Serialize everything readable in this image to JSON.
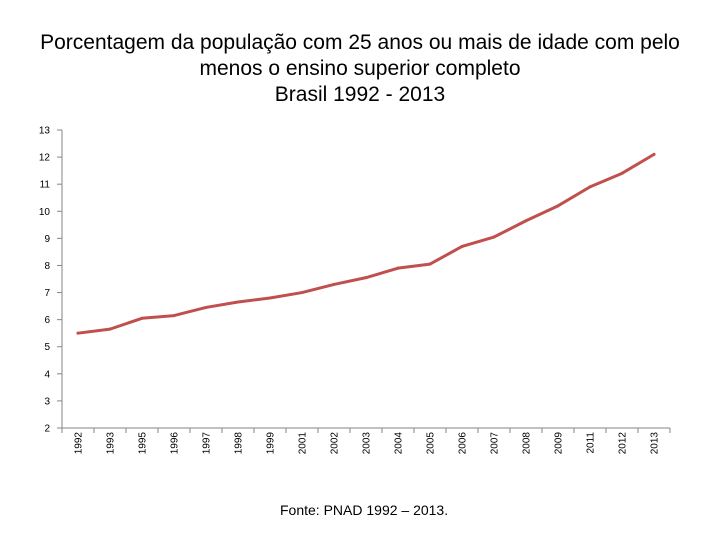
{
  "title_lines": [
    "Porcentagem da população com 25 anos ou mais de idade com pelo",
    "menos o ensino superior completo",
    "Brasil   1992 - 2013"
  ],
  "source": "Fonte: PNAD 1992 – 2013.",
  "colors": {
    "series": "#c0504d",
    "axis": "#868686"
  },
  "chart_data": {
    "type": "line",
    "title": "Porcentagem da população com 25 anos ou mais de idade com pelo menos o ensino superior completo Brasil   1992 - 2013",
    "categories": [
      "1992",
      "1993",
      "1995",
      "1996",
      "1997",
      "1998",
      "1999",
      "2001",
      "2002",
      "2003",
      "2004",
      "2005",
      "2006",
      "2007",
      "2008",
      "2009",
      "2011",
      "2012",
      "2013"
    ],
    "series": [
      {
        "values": [
          5.5,
          5.65,
          6.05,
          6.15,
          6.45,
          6.65,
          6.8,
          7.0,
          7.3,
          7.55,
          7.9,
          8.05,
          8.7,
          9.05,
          9.65,
          10.2,
          10.9,
          11.4,
          12.1
        ]
      }
    ],
    "ylim": [
      2,
      13
    ],
    "yticks": [
      2,
      3,
      4,
      5,
      6,
      7,
      8,
      9,
      10,
      11,
      12,
      13
    ],
    "xlabel": "",
    "ylabel": "",
    "grid": false,
    "legend": "none"
  }
}
